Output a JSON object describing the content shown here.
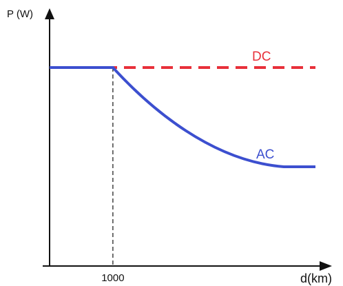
{
  "chart_data": {
    "type": "line",
    "ylabel": "P (W)",
    "xlabel": "d(km)",
    "x_ticks": [
      {
        "value": 1000,
        "label": "1000"
      }
    ],
    "xlim": [
      0,
      4200
    ],
    "ylim": [
      0,
      1.0
    ],
    "grid": false,
    "series": [
      {
        "name": "DC",
        "color": "#e8303a",
        "dash": true,
        "points": [
          [
            0,
            0.8
          ],
          [
            4200,
            0.8
          ]
        ]
      },
      {
        "name": "AC",
        "color": "#3c4fcf",
        "dash": false,
        "points": [
          [
            0,
            0.8
          ],
          [
            1000,
            0.8
          ],
          [
            3700,
            0.4
          ],
          [
            4200,
            0.4
          ]
        ]
      }
    ],
    "reference_lines": [
      {
        "x": 1000,
        "style": "dashed",
        "color": "#111111"
      }
    ]
  }
}
